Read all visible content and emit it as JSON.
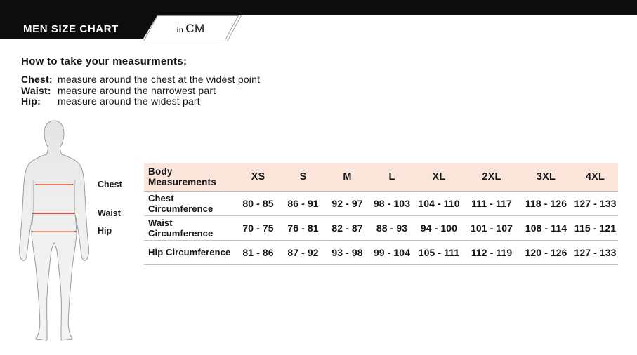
{
  "banner": {
    "title": "MEN SIZE CHART",
    "unit_prefix": "in",
    "unit": "CM",
    "bg_color": "#0d0d0d"
  },
  "instructions": {
    "heading": "How to take your measurments:",
    "items": [
      {
        "term": "Chest:",
        "desc": "measure around the chest at the widest point"
      },
      {
        "term": "Waist:",
        "desc": "measure around the narrowest part"
      },
      {
        "term": "Hip:",
        "desc": "measure around the widest part"
      }
    ]
  },
  "figure": {
    "labels": [
      "Chest",
      "Waist",
      "Hip"
    ],
    "line_colors": {
      "chest": "#ee6a44",
      "waist": "#d93025",
      "hip": "#ef9674"
    }
  },
  "table": {
    "header_bg": "#fbe5da",
    "divider_color": "#c4c4c4"
  },
  "chart_data": {
    "type": "table",
    "title": "MEN SIZE CHART",
    "unit": "CM",
    "columns": [
      "Body Measurements",
      "XS",
      "S",
      "M",
      "L",
      "XL",
      "2XL",
      "3XL",
      "4XL"
    ],
    "rows": [
      {
        "label": "Chest Circumference",
        "values": [
          "80 - 85",
          "86 - 91",
          "92 - 97",
          "98 - 103",
          "104 - 110",
          "111 - 117",
          "118 - 126",
          "127 - 133"
        ]
      },
      {
        "label": "Waist Circumference",
        "values": [
          "70 - 75",
          "76 - 81",
          "82 - 87",
          "88 - 93",
          "94 - 100",
          "101 - 107",
          "108 - 114",
          "115 - 121"
        ]
      },
      {
        "label": "Hip Circumference",
        "values": [
          "81 - 86",
          "87 - 92",
          "93 - 98",
          "99 - 104",
          "105 - 111",
          "112 - 119",
          "120 - 126",
          "127 - 133"
        ]
      }
    ]
  }
}
